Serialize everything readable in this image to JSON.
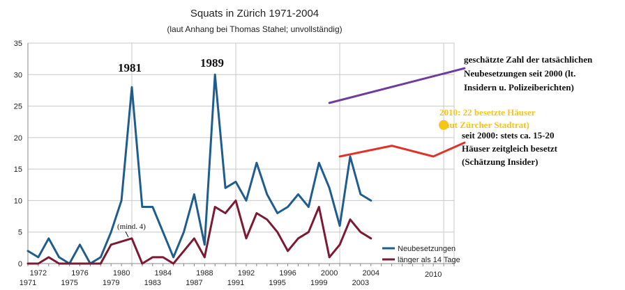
{
  "chart_data": {
    "type": "line",
    "title": "Squats in Zürich 1971-2004",
    "subtitle": "(laut Anhang bei Thomas Stahel; unvollständig)",
    "xlabel": "",
    "ylabel": "",
    "xlim": [
      1971,
      2012
    ],
    "ylim": [
      0,
      35
    ],
    "yticks": [
      0,
      5,
      10,
      15,
      20,
      25,
      30,
      35
    ],
    "xtick_labels_upper": [
      "1972",
      "1976",
      "1980",
      "1984",
      "1988",
      "1992",
      "1996",
      "2000",
      "2004"
    ],
    "xtick_labels_lower": [
      "1971",
      "1975",
      "1979",
      "1983",
      "1987",
      "1991",
      "1995",
      "1999",
      "2003"
    ],
    "xtick_label_single": "2010",
    "grid": true,
    "series": [
      {
        "name": "Neubesetzungen",
        "color": "#1f5d8f",
        "x": [
          1971,
          1972,
          1973,
          1974,
          1975,
          1976,
          1977,
          1978,
          1979,
          1980,
          1981,
          1982,
          1983,
          1984,
          1985,
          1986,
          1987,
          1988,
          1989,
          1990,
          1991,
          1992,
          1993,
          1994,
          1995,
          1996,
          1997,
          1998,
          1999,
          2000,
          2001,
          2002,
          2003,
          2004
        ],
        "y": [
          2,
          1,
          4,
          1,
          0,
          3,
          0,
          1,
          5,
          10,
          28,
          9,
          9,
          5,
          1,
          5,
          11,
          3,
          30,
          12,
          13,
          10,
          16,
          11,
          8,
          9,
          11,
          9,
          16,
          12,
          6,
          17,
          11,
          10
        ]
      },
      {
        "name": "länger als 14 Tage",
        "color": "#7b1a32",
        "x": [
          1971,
          1972,
          1973,
          1974,
          1975,
          1976,
          1977,
          1978,
          1979,
          1980,
          1981,
          1982,
          1983,
          1984,
          1985,
          1986,
          1987,
          1988,
          1989,
          1990,
          1991,
          1992,
          1993,
          1994,
          1995,
          1996,
          1997,
          1998,
          1999,
          2000,
          2001,
          2002,
          2003,
          2004
        ],
        "y": [
          0,
          0,
          1,
          0,
          0,
          0,
          0,
          0,
          3,
          3.5,
          4,
          0,
          1,
          1,
          0,
          2,
          4,
          1,
          9,
          8,
          10,
          4,
          8,
          7,
          5,
          2,
          4,
          5,
          9,
          1,
          3,
          7,
          5,
          4
        ]
      },
      {
        "name": "seit 2000: stets ca. 15-20 Häuser zeitgleich besetzt",
        "color": "#e03228",
        "x": [
          2001,
          2006,
          2010,
          2013
        ],
        "y": [
          17,
          18.7,
          17,
          19.2
        ]
      },
      {
        "name": "geschätzte Zahl der tatsächlichen Neubesetzungen seit 2000",
        "color": "#6e3b9e",
        "x": [
          2000,
          2013
        ],
        "y": [
          25.5,
          31
        ]
      }
    ],
    "points": [
      {
        "label": "2010: 22 besetzte Häuser",
        "x": 2011,
        "y": 22,
        "color": "#f5c518"
      }
    ],
    "annotations": {
      "peak_1981": "1981",
      "peak_1989": "1989",
      "min_note": "(mind. 4)",
      "purple_note": [
        "geschätzte Zahl der tatsächlichen",
        "Neubesetzungen seit 2000 (lt.",
        "Insidern u. Polizeiberichten)"
      ],
      "yellow_note": [
        "2010: 22 besetzte Häuser",
        "(laut Zürcher Stadtrat)"
      ],
      "red_note": [
        "seit 2000: stets ca. 15-20",
        "Häuser zeitgleich besetzt",
        "(Schätzung Insider)"
      ]
    },
    "legend": {
      "placement": "bottom-right",
      "entries": [
        "Neubesetzungen",
        "länger als 14 Tage"
      ]
    }
  }
}
